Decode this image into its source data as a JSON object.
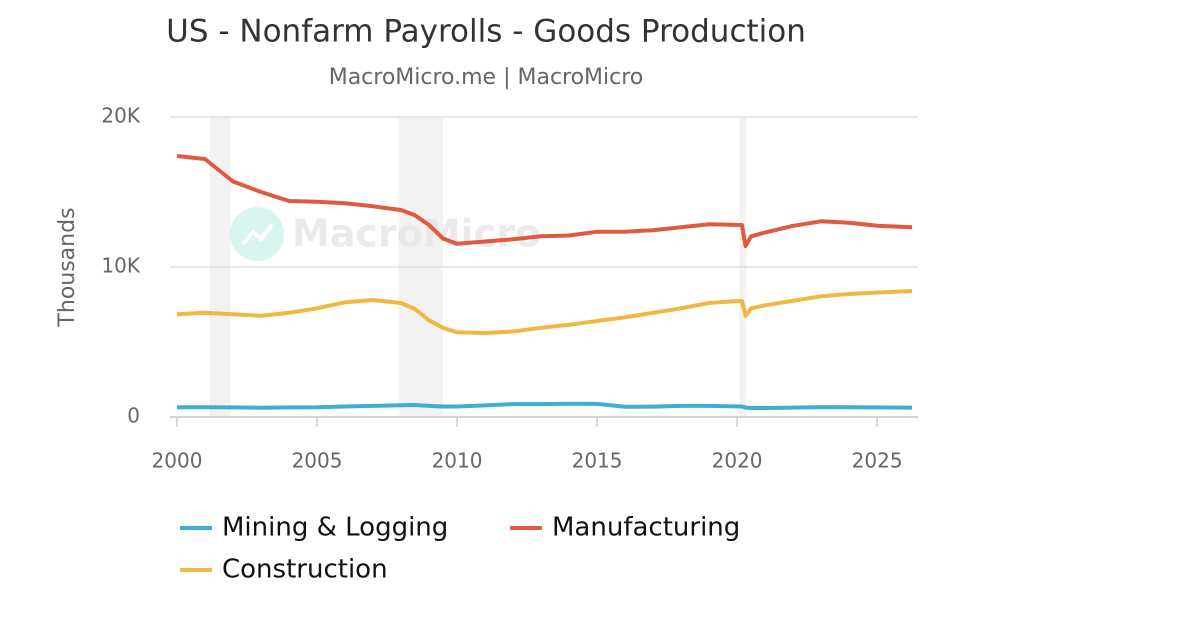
{
  "chart_data": {
    "type": "line",
    "title": "US - Nonfarm Payrolls - Goods Production",
    "subtitle": "MacroMicro.me | MacroMicro",
    "watermark": "MacroMicro",
    "y_label": "Thousands",
    "x": [
      2000,
      2001,
      2002,
      2003,
      2004,
      2005,
      2006,
      2007,
      2008,
      2008.5,
      2009,
      2009.5,
      2010,
      2011,
      2012,
      2013,
      2014,
      2015,
      2016,
      2017,
      2018,
      2019,
      2020.17,
      2020.3,
      2020.5,
      2021,
      2022,
      2023,
      2024,
      2025,
      2026.25
    ],
    "series": [
      {
        "name": "Mining & Logging",
        "color": "#3eaed4",
        "values": [
          650,
          650,
          640,
          620,
          640,
          650,
          700,
          740,
          780,
          800,
          740,
          700,
          700,
          770,
          860,
          860,
          880,
          870,
          680,
          690,
          740,
          740,
          700,
          630,
          600,
          600,
          630,
          660,
          650,
          640,
          630
        ]
      },
      {
        "name": "Manufacturing",
        "color": "#e05a3f",
        "values": [
          17400,
          17200,
          15700,
          15000,
          14400,
          14350,
          14250,
          14050,
          13800,
          13450,
          12800,
          11900,
          11550,
          11700,
          11850,
          12050,
          12100,
          12350,
          12350,
          12450,
          12650,
          12850,
          12800,
          11400,
          12050,
          12300,
          12750,
          13050,
          12950,
          12750,
          12650
        ]
      },
      {
        "name": "Construction",
        "color": "#f1b841",
        "values": [
          6850,
          6950,
          6850,
          6750,
          6950,
          7250,
          7650,
          7800,
          7600,
          7200,
          6450,
          5950,
          5650,
          5600,
          5700,
          5950,
          6150,
          6400,
          6650,
          6950,
          7250,
          7600,
          7750,
          6750,
          7250,
          7450,
          7750,
          8050,
          8200,
          8300,
          8400
        ]
      }
    ],
    "shaded_ranges": [
      [
        2001.17,
        2001.92
      ],
      [
        2007.92,
        2009.5
      ],
      [
        2020.08,
        2020.33
      ]
    ],
    "xlim": [
      1999.75,
      2026.46
    ],
    "xticks": [
      2000,
      2005,
      2010,
      2015,
      2020,
      2025
    ],
    "ylim": [
      0,
      20000
    ],
    "yticks": [
      0,
      {
        "value": 10000,
        "label": "10K"
      },
      {
        "value": 20000,
        "label": "20K"
      }
    ],
    "grid": true,
    "legend": "bottom"
  }
}
